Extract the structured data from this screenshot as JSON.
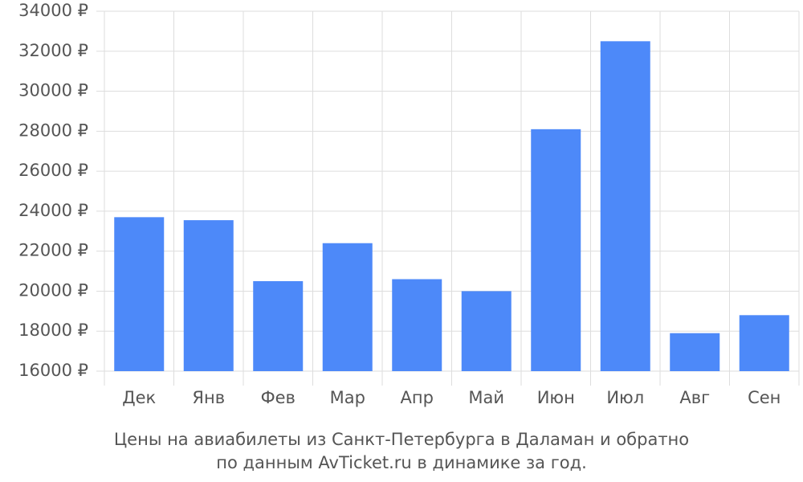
{
  "chart_data": {
    "type": "bar",
    "title": [
      "Цены на авиабилеты из Санкт-Петербурга в Даламан и обратно",
      "по данным AvTicket.ru в динамике за год."
    ],
    "categories": [
      "Дек",
      "Янв",
      "Фев",
      "Мар",
      "Апр",
      "Май",
      "Июн",
      "Июл",
      "Авг",
      "Сен"
    ],
    "values": [
      23700,
      23550,
      20500,
      22400,
      20600,
      20000,
      28100,
      32500,
      17900,
      18800
    ],
    "color": "#4d89f9",
    "ylim": [
      16000,
      34000
    ],
    "yticks": [
      {
        "value": 16000,
        "label": "16000 ₽"
      },
      {
        "value": 18000,
        "label": "18000 ₽"
      },
      {
        "value": 20000,
        "label": "20000 ₽"
      },
      {
        "value": 22000,
        "label": "22000 ₽"
      },
      {
        "value": 24000,
        "label": "24000 ₽"
      },
      {
        "value": 26000,
        "label": "26000 ₽"
      },
      {
        "value": 28000,
        "label": "28000 ₽"
      },
      {
        "value": 30000,
        "label": "30000 ₽"
      },
      {
        "value": 32000,
        "label": "32000 ₽"
      },
      {
        "value": 34000,
        "label": "34000 ₽"
      }
    ],
    "grid": true
  }
}
